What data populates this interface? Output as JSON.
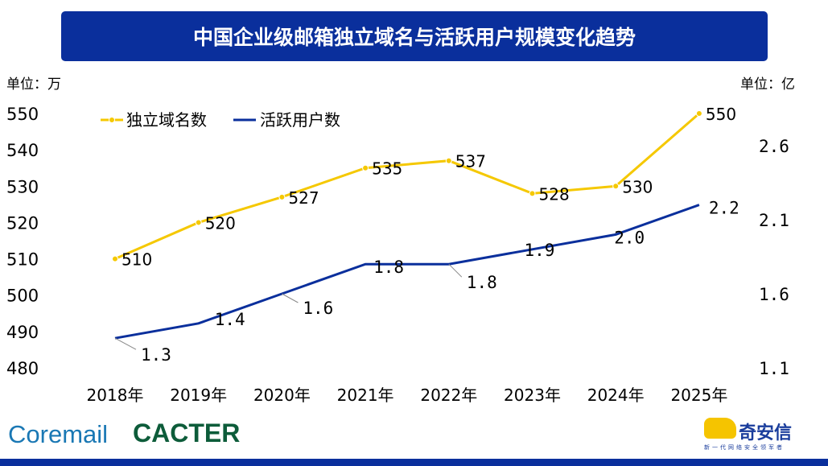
{
  "title": "中国企业级邮箱独立域名与活跃用户规模变化趋势",
  "logos": {
    "coremail": "Coremail",
    "cacter": "CACTER",
    "qianxin": "奇安信",
    "qianxin_slogan": "新一代网络安全领军者"
  },
  "chart_data": {
    "type": "line",
    "categories": [
      "2018年",
      "2019年",
      "2020年",
      "2021年",
      "2022年",
      "2023年",
      "2024年",
      "2025年"
    ],
    "left_unit": "单位：万",
    "right_unit": "单位：亿",
    "left_ylim": [
      480,
      550
    ],
    "left_ticks": [
      "480",
      "490",
      "500",
      "510",
      "520",
      "530",
      "540",
      "550"
    ],
    "right_ylim": [
      1.1,
      2.7
    ],
    "right_ticks": [
      "1.1",
      "1.6",
      "2.1",
      "2.6"
    ],
    "legend_position": "top-left",
    "grid": false,
    "series": [
      {
        "name": "独立域名数",
        "axis": "left",
        "color": "#f5c800",
        "values": [
          510,
          520,
          527,
          535,
          537,
          528,
          530,
          550
        ],
        "labels": [
          "510",
          "520",
          "527",
          "535",
          "537",
          "528",
          "530",
          "550"
        ]
      },
      {
        "name": "活跃用户数",
        "axis": "right",
        "color": "#0a2f9c",
        "values": [
          1.3,
          1.4,
          1.6,
          1.8,
          1.8,
          1.9,
          2.0,
          2.2
        ],
        "labels": [
          "1.3",
          "1.4",
          "1.6",
          "1.8",
          "1.8",
          "1.9",
          "2.0",
          "2.2"
        ]
      }
    ]
  }
}
